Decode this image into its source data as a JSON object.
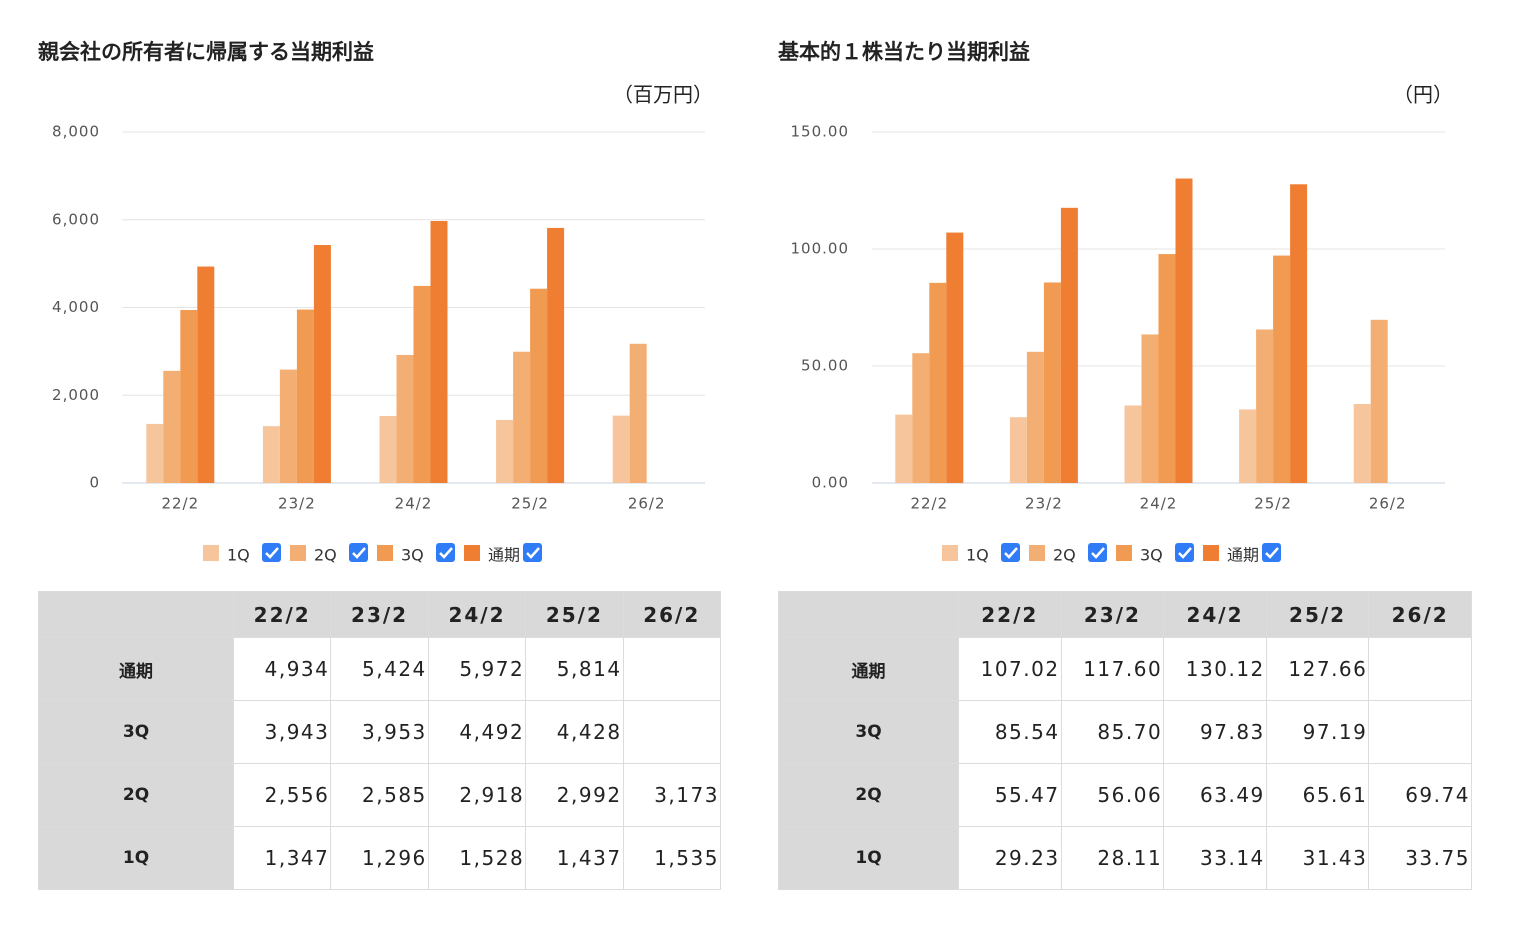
{
  "chart_data": [
    {
      "type": "bar",
      "title": "親会社の所有者に帰属する当期利益",
      "unit": "（百万円）",
      "categories": [
        "22/2",
        "23/2",
        "24/2",
        "25/2",
        "26/2"
      ],
      "series": [
        {
          "name": "1Q",
          "color": "#f6c59c",
          "values": [
            1347,
            1296,
            1528,
            1437,
            1535
          ]
        },
        {
          "name": "2Q",
          "color": "#f3ae73",
          "values": [
            2556,
            2585,
            2918,
            2992,
            3173
          ]
        },
        {
          "name": "3Q",
          "color": "#f19a52",
          "values": [
            3943,
            3953,
            4492,
            4428,
            null
          ]
        },
        {
          "name": "通期",
          "color": "#ef7e32",
          "values": [
            4934,
            5424,
            5972,
            5814,
            null
          ]
        }
      ],
      "ylim": [
        0,
        8000
      ],
      "yticks": [
        0,
        {
          "value": 2000,
          "label": "2,000"
        },
        {
          "value": 4000,
          "label": "4,000"
        },
        {
          "value": 6000,
          "label": "6,000"
        },
        {
          "value": 8000,
          "label": "8,000"
        }
      ],
      "grid": true
    },
    {
      "type": "bar",
      "title": "基本的１株当たり当期利益",
      "unit": "（円）",
      "categories": [
        "22/2",
        "23/2",
        "24/2",
        "25/2",
        "26/2"
      ],
      "series": [
        {
          "name": "1Q",
          "color": "#f6c59c",
          "values": [
            29.23,
            28.11,
            33.14,
            31.43,
            33.75
          ]
        },
        {
          "name": "2Q",
          "color": "#f3ae73",
          "values": [
            55.47,
            56.06,
            63.49,
            65.61,
            69.74
          ]
        },
        {
          "name": "3Q",
          "color": "#f19a52",
          "values": [
            85.54,
            85.7,
            97.83,
            97.19,
            null
          ]
        },
        {
          "name": "通期",
          "color": "#ef7e32",
          "values": [
            107.02,
            117.6,
            130.12,
            127.66,
            null
          ]
        }
      ],
      "ylim": [
        0,
        150
      ],
      "yticks": [
        {
          "value": 0,
          "label": "0.00"
        },
        {
          "value": 50,
          "label": "50.00"
        },
        {
          "value": 100,
          "label": "100.00"
        },
        {
          "value": 150,
          "label": "150.00"
        }
      ],
      "grid": true
    }
  ],
  "tables": [
    {
      "columns": [
        "22/2",
        "23/2",
        "24/2",
        "25/2",
        "26/2"
      ],
      "rows": [
        {
          "label": "通期",
          "cells": [
            "4,934",
            "5,424",
            "5,972",
            "5,814",
            null
          ]
        },
        {
          "label": "3Q",
          "cells": [
            "3,943",
            "3,953",
            "4,492",
            "4,428",
            null
          ]
        },
        {
          "label": "2Q",
          "cells": [
            "2,556",
            "2,585",
            "2,918",
            "2,992",
            "3,173"
          ]
        },
        {
          "label": "1Q",
          "cells": [
            "1,347",
            "1,296",
            "1,528",
            "1,437",
            "1,535"
          ]
        }
      ]
    },
    {
      "columns": [
        "22/2",
        "23/2",
        "24/2",
        "25/2",
        "26/2"
      ],
      "rows": [
        {
          "label": "通期",
          "cells": [
            "107.02",
            "117.60",
            "130.12",
            "127.66",
            null
          ]
        },
        {
          "label": "3Q",
          "cells": [
            "85.54",
            "85.70",
            "97.83",
            "97.19",
            null
          ]
        },
        {
          "label": "2Q",
          "cells": [
            "55.47",
            "56.06",
            "63.49",
            "65.61",
            "69.74"
          ]
        },
        {
          "label": "1Q",
          "cells": [
            "29.23",
            "28.11",
            "33.14",
            "31.43",
            "33.75"
          ]
        }
      ]
    }
  ]
}
